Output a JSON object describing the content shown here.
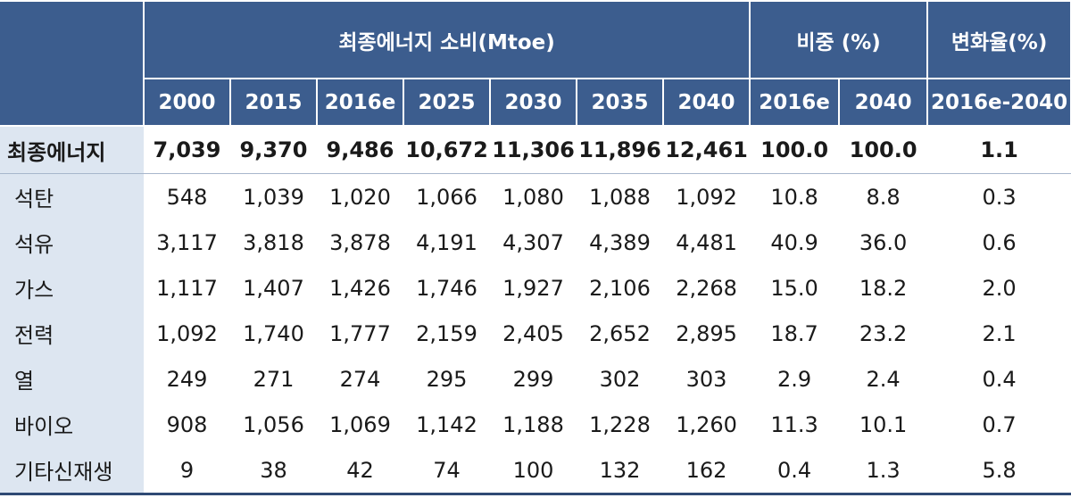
{
  "header": {
    "group_consumption": "최종에너지 소비(Mtoe)",
    "group_share": "비중 (%)",
    "group_change": "변화율(%)",
    "years": [
      "2000",
      "2015",
      "2016e",
      "2025",
      "2030",
      "2035",
      "2040"
    ],
    "share_years": [
      "2016e",
      "2040"
    ],
    "change_period": "2016e-2040"
  },
  "rows": [
    {
      "label": "최종에너지",
      "values": [
        "7,039",
        "9,370",
        "9,486",
        "10,672",
        "11,306",
        "11,896",
        "12,461"
      ],
      "share": [
        "100.0",
        "100.0"
      ],
      "change": "1.1"
    },
    {
      "label": "석탄",
      "values": [
        "548",
        "1,039",
        "1,020",
        "1,066",
        "1,080",
        "1,088",
        "1,092"
      ],
      "share": [
        "10.8",
        "8.8"
      ],
      "change": "0.3"
    },
    {
      "label": "석유",
      "values": [
        "3,117",
        "3,818",
        "3,878",
        "4,191",
        "4,307",
        "4,389",
        "4,481"
      ],
      "share": [
        "40.9",
        "36.0"
      ],
      "change": "0.6"
    },
    {
      "label": "가스",
      "values": [
        "1,117",
        "1,407",
        "1,426",
        "1,746",
        "1,927",
        "2,106",
        "2,268"
      ],
      "share": [
        "15.0",
        "18.2"
      ],
      "change": "2.0"
    },
    {
      "label": "전력",
      "values": [
        "1,092",
        "1,740",
        "1,777",
        "2,159",
        "2,405",
        "2,652",
        "2,895"
      ],
      "share": [
        "18.7",
        "23.2"
      ],
      "change": "2.1"
    },
    {
      "label": "열",
      "values": [
        "249",
        "271",
        "274",
        "295",
        "299",
        "302",
        "303"
      ],
      "share": [
        "2.9",
        "2.4"
      ],
      "change": "0.4"
    },
    {
      "label": "바이오",
      "values": [
        "908",
        "1,056",
        "1,069",
        "1,142",
        "1,188",
        "1,228",
        "1,260"
      ],
      "share": [
        "11.3",
        "10.1"
      ],
      "change": "0.7"
    },
    {
      "label": "기타신재생",
      "values": [
        "9",
        "38",
        "42",
        "74",
        "100",
        "132",
        "162"
      ],
      "share": [
        "0.4",
        "1.3"
      ],
      "change": "5.8"
    }
  ],
  "colors": {
    "header_bg": "#3c5d8e",
    "label_bg": "#dde6f1",
    "bottom_rule": "#2f4a74"
  }
}
